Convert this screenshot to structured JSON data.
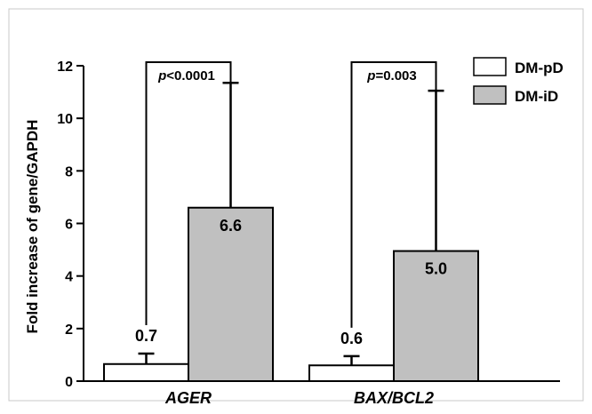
{
  "chart_data": {
    "type": "bar",
    "categories": [
      "AGER",
      "BAX/BCL2"
    ],
    "ylabel": "Fold increase of gene/GAPDH",
    "ylim": [
      0,
      12
    ],
    "yticks": [
      0,
      2,
      4,
      6,
      8,
      10,
      12
    ],
    "grid": false,
    "legend_position": "top-right",
    "series": [
      {
        "name": "DM-pD",
        "color": "#ffffff",
        "values": [
          0.65,
          0.6
        ],
        "error_upper": [
          1.05,
          0.95
        ],
        "value_labels": [
          "0.7",
          "0.6"
        ]
      },
      {
        "name": "DM-iD",
        "color": "#c0c0c0",
        "values": [
          6.6,
          4.95
        ],
        "error_upper": [
          11.35,
          11.05
        ],
        "value_labels": [
          "6.6",
          "5.0"
        ]
      }
    ],
    "annotations": [
      {
        "category": "AGER",
        "p_symbol": "p",
        "p_text": "<0.0001"
      },
      {
        "category": "BAX/BCL2",
        "p_symbol": "p",
        "p_text": "=0.003"
      }
    ]
  }
}
